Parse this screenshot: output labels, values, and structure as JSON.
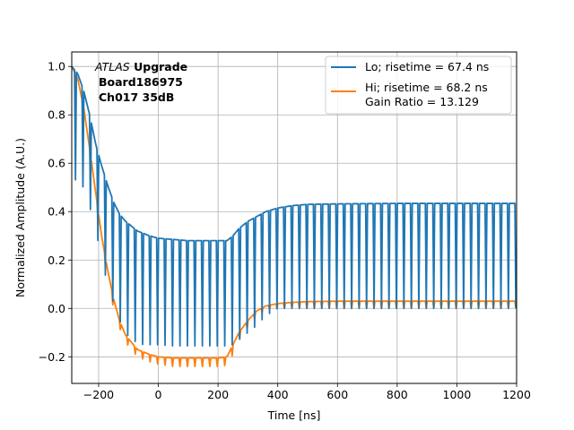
{
  "chart_data": {
    "type": "line",
    "xlabel": "Time [ns]",
    "ylabel": "Normalized Amplitude (A.U.)",
    "xlim": [
      -290,
      1200
    ],
    "ylim": [
      -0.31,
      1.06
    ],
    "xticks": [
      -200,
      0,
      200,
      400,
      600,
      800,
      1000,
      1200
    ],
    "yticks": [
      -0.2,
      0.0,
      0.2,
      0.4,
      0.6,
      0.8,
      1.0
    ],
    "xtick_labels": [
      "−200",
      "0",
      "200",
      "400",
      "600",
      "800",
      "1000",
      "1200"
    ],
    "ytick_labels": [
      "−0.2",
      "0.0",
      "0.2",
      "0.4",
      "0.6",
      "0.8",
      "1.0"
    ],
    "grid": true,
    "legend_position": "top-right",
    "annotation": {
      "italic": "ATLAS",
      "bold": "Upgrade",
      "line2": "Board186975",
      "line3": "Ch017 35dB"
    },
    "sampling": {
      "period_ns": 25,
      "sub_samples_per_period": 8,
      "dip_sub_sample_index": 4,
      "t_start": -290,
      "t_end": 1200
    },
    "series": [
      {
        "name": "Lo; risetime = 67.4 ns",
        "color": "#1f77b4",
        "envelope": {
          "x": [
            -290,
            -270,
            -250,
            -230,
            -210,
            -190,
            -170,
            -150,
            -130,
            -110,
            -90,
            -70,
            -50,
            -30,
            0,
            50,
            100,
            150,
            200,
            230,
            250,
            270,
            300,
            330,
            360,
            400,
            450,
            500,
            600,
            800,
            1000,
            1200
          ],
          "y": [
            1.0,
            0.97,
            0.9,
            0.8,
            0.68,
            0.59,
            0.51,
            0.44,
            0.39,
            0.36,
            0.34,
            0.32,
            0.31,
            0.3,
            0.29,
            0.285,
            0.28,
            0.28,
            0.28,
            0.28,
            0.3,
            0.33,
            0.36,
            0.38,
            0.4,
            0.415,
            0.425,
            0.43,
            0.432,
            0.434,
            0.434,
            0.434
          ]
        },
        "dip_level": {
          "x": [
            -290,
            -270,
            -250,
            -230,
            -210,
            -190,
            -170,
            -150,
            -130,
            -110,
            -90,
            -70,
            -50,
            -30,
            0,
            50,
            100,
            150,
            200,
            230,
            250,
            270,
            300,
            330,
            360,
            400,
            450,
            500,
            600,
            800,
            1000,
            1200
          ],
          "y": [
            0.55,
            0.52,
            0.5,
            0.42,
            0.33,
            0.2,
            0.1,
            0.02,
            -0.05,
            -0.1,
            -0.13,
            -0.14,
            -0.15,
            -0.15,
            -0.15,
            -0.155,
            -0.155,
            -0.155,
            -0.155,
            -0.155,
            -0.15,
            -0.13,
            -0.1,
            -0.07,
            -0.03,
            0.0,
            0.0,
            0.0,
            0.0,
            0.0,
            0.0,
            0.0
          ]
        }
      },
      {
        "name": "Hi; risetime = 68.2 ns\n Gain Ratio = 13.129",
        "color": "#ff7f0e",
        "envelope": {
          "x": [
            -290,
            -270,
            -250,
            -230,
            -210,
            -190,
            -170,
            -150,
            -130,
            -110,
            -90,
            -70,
            -50,
            -30,
            0,
            50,
            100,
            150,
            200,
            230,
            250,
            270,
            300,
            330,
            360,
            400,
            450,
            500,
            600,
            800,
            1000,
            1200
          ],
          "y": [
            1.0,
            0.95,
            0.83,
            0.66,
            0.48,
            0.3,
            0.16,
            0.04,
            -0.05,
            -0.11,
            -0.14,
            -0.17,
            -0.18,
            -0.19,
            -0.2,
            -0.205,
            -0.205,
            -0.205,
            -0.205,
            -0.2,
            -0.15,
            -0.1,
            -0.05,
            -0.01,
            0.01,
            0.02,
            0.025,
            0.028,
            0.03,
            0.03,
            0.03,
            0.03
          ]
        },
        "dip_level": {
          "x": [
            -290,
            -270,
            -250,
            -230,
            -210,
            -190,
            -170,
            -150,
            -130,
            -110,
            -90,
            -70,
            -50,
            -30,
            0,
            50,
            100,
            150,
            200,
            230,
            250,
            270,
            300,
            330,
            360,
            400,
            450,
            500,
            600,
            800,
            1000,
            1200
          ],
          "y": [
            0.98,
            0.92,
            0.8,
            0.62,
            0.44,
            0.26,
            0.12,
            0.0,
            -0.08,
            -0.14,
            -0.17,
            -0.2,
            -0.21,
            -0.22,
            -0.23,
            -0.24,
            -0.24,
            -0.24,
            -0.24,
            -0.235,
            -0.19,
            -0.13,
            -0.08,
            -0.03,
            -0.01,
            0.0,
            0.0,
            0.0,
            0.0,
            0.0,
            0.0,
            0.0
          ]
        }
      }
    ]
  }
}
